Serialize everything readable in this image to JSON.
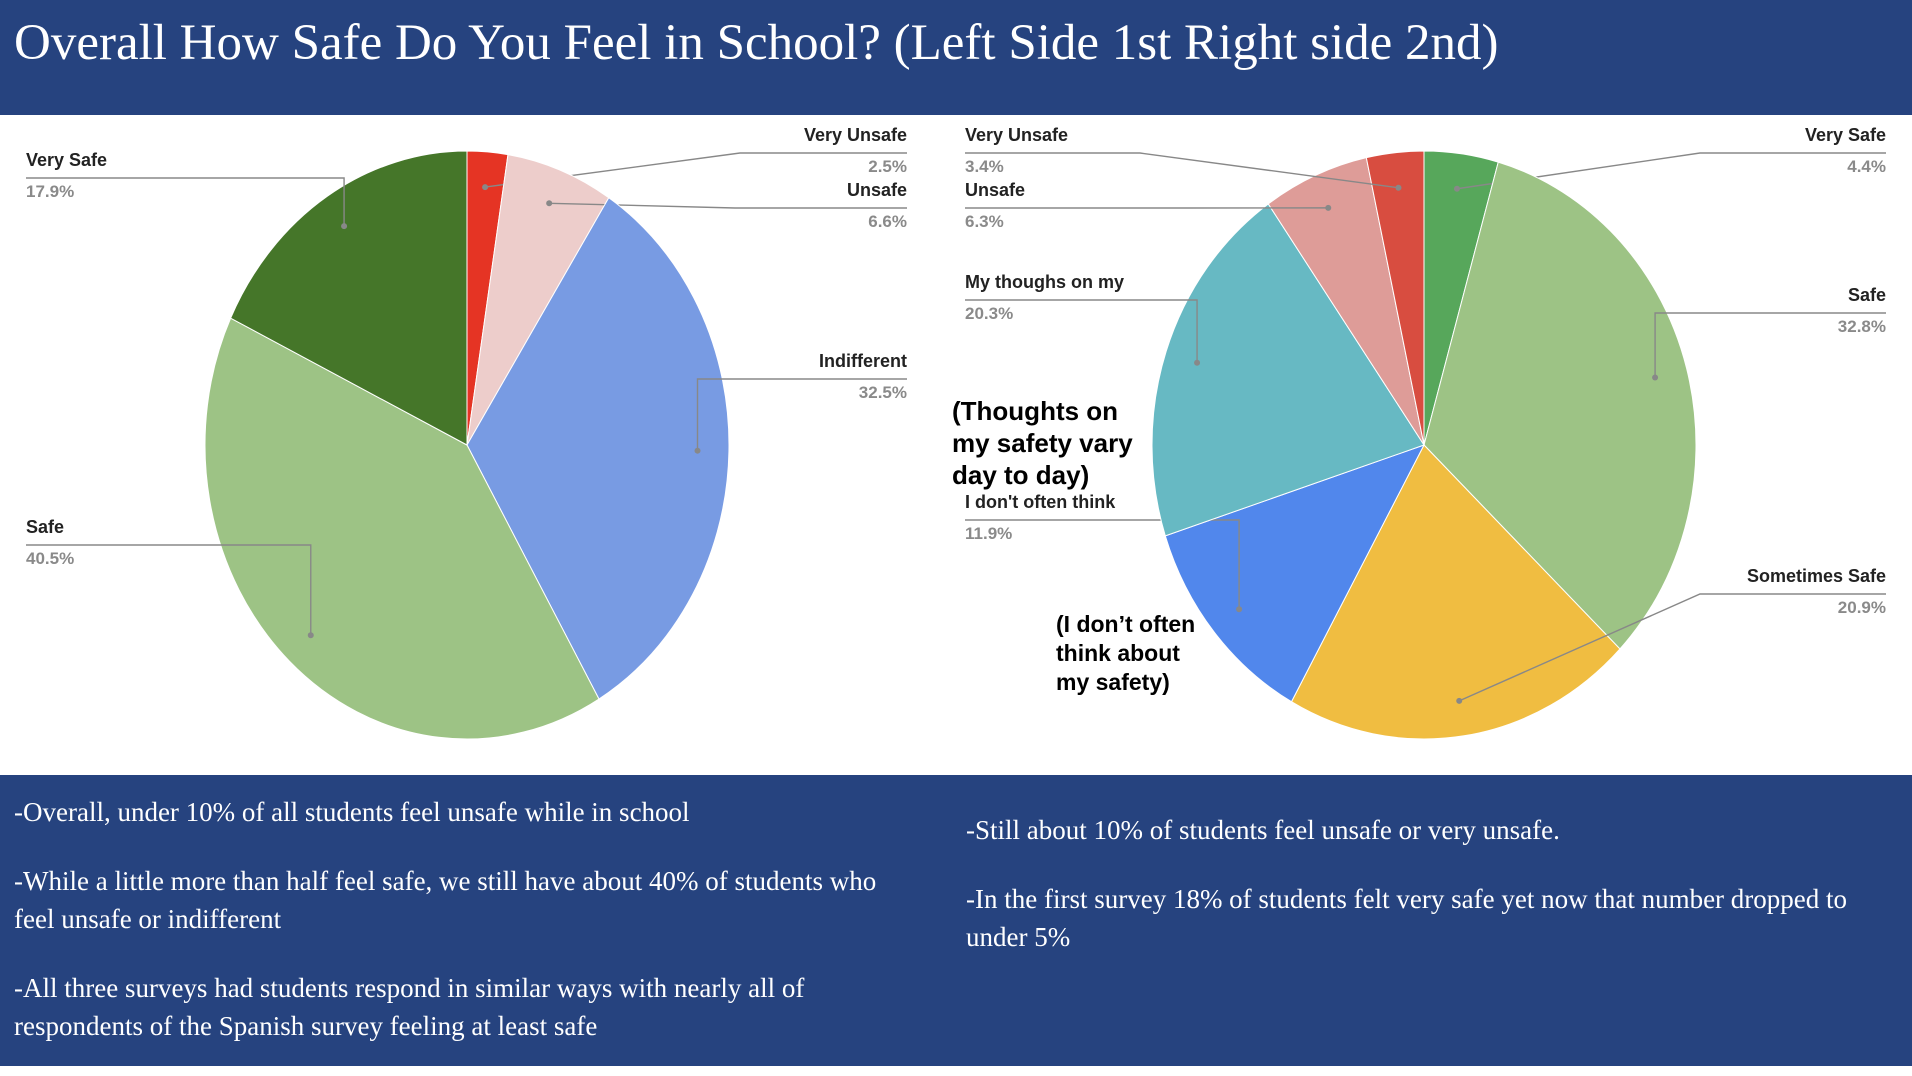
{
  "title": "Overall How Safe Do You Feel in School? (Left Side 1st Right side 2nd)",
  "colors": {
    "header_bg": "#26437f",
    "footer_bg": "#26437f",
    "title_text": "#ffffff"
  },
  "chart_data": [
    {
      "type": "pie",
      "slices": [
        {
          "name": "Very Unsafe",
          "label": "2.5%",
          "value": 2.5,
          "color": "#e53424"
        },
        {
          "name": "Unsafe",
          "label": "6.6%",
          "value": 6.6,
          "color": "#edcdcb"
        },
        {
          "name": "Indifferent",
          "label": "32.5%",
          "value": 32.5,
          "color": "#789be3"
        },
        {
          "name": "Safe",
          "label": "40.5%",
          "value": 40.5,
          "color": "#9dc385"
        },
        {
          "name": "Very Safe",
          "label": "17.9%",
          "value": 17.9,
          "color": "#457629"
        }
      ]
    },
    {
      "type": "pie",
      "slices": [
        {
          "name": "Very Safe",
          "label": "4.4%",
          "value": 4.4,
          "color": "#57a75b"
        },
        {
          "name": "Safe",
          "label": "32.8%",
          "value": 32.8,
          "color": "#9dc385"
        },
        {
          "name": "Sometimes Safe",
          "label": "20.9%",
          "value": 20.9,
          "color": "#f0bd41"
        },
        {
          "name": "I don't often think",
          "label": "11.9%",
          "value": 11.9,
          "color": "#5187ec"
        },
        {
          "name": "My thoughs on my",
          "label": "20.3%",
          "value": 20.3,
          "color": "#67b9c3"
        },
        {
          "name": "Unsafe",
          "label": "6.3%",
          "value": 6.3,
          "color": "#de9c98"
        },
        {
          "name": "Very Unsafe",
          "label": "3.4%",
          "value": 3.4,
          "color": "#d84d40"
        }
      ],
      "annotations": [
        {
          "lines": [
            "(Thoughts on",
            "my safety vary",
            "day to day)"
          ]
        },
        {
          "lines": [
            "(I don’t often",
            "think about",
            "my safety)"
          ]
        }
      ]
    }
  ],
  "notes_left": [
    "-Overall, under 10% of all students feel unsafe while in school",
    "-While a little more than half feel safe, we still have about 40% of students who feel unsafe or indifferent",
    "-All three surveys had students respond in similar ways with nearly all of respondents of the Spanish survey feeling at least safe"
  ],
  "notes_right": [
    "-Still about 10% of students feel unsafe or very unsafe.",
    "-In the first survey 18% of students felt very safe yet now that number dropped to under 5%"
  ]
}
